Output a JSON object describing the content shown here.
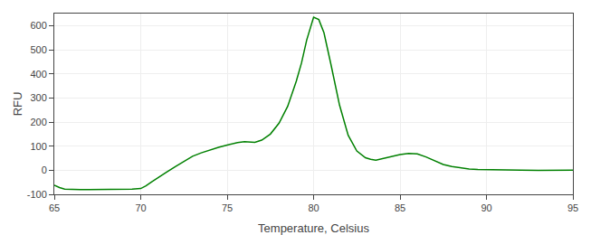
{
  "chart_data": {
    "type": "line",
    "xlabel": "Temperature, Celsius",
    "ylabel": "RFU",
    "x": [
      65.0,
      65.3,
      65.6,
      66.0,
      66.5,
      67.0,
      67.5,
      68.0,
      68.5,
      69.0,
      69.5,
      70.0,
      70.3,
      70.6,
      71.0,
      71.5,
      72.0,
      72.5,
      73.0,
      73.5,
      74.0,
      74.5,
      75.0,
      75.3,
      75.6,
      76.0,
      76.3,
      76.6,
      77.0,
      77.5,
      78.0,
      78.5,
      79.0,
      79.3,
      79.6,
      80.0,
      80.3,
      80.6,
      81.0,
      81.5,
      82.0,
      82.5,
      83.0,
      83.3,
      83.6,
      84.0,
      84.5,
      85.0,
      85.5,
      86.0,
      86.5,
      87.0,
      87.5,
      88.0,
      88.5,
      89.0,
      89.5,
      90.0,
      90.5,
      91.0,
      92.0,
      93.0,
      94.0,
      95.0
    ],
    "values": [
      -62,
      -72,
      -78,
      -80,
      -80,
      -80,
      -80,
      -80,
      -80,
      -80,
      -78,
      -76,
      -65,
      -50,
      -30,
      -8,
      15,
      38,
      58,
      72,
      85,
      95,
      104,
      110,
      115,
      118,
      118,
      116,
      125,
      150,
      195,
      265,
      370,
      445,
      540,
      635,
      625,
      570,
      440,
      270,
      145,
      80,
      52,
      45,
      42,
      48,
      58,
      65,
      70,
      68,
      55,
      38,
      24,
      15,
      9,
      5,
      3,
      2,
      1,
      0,
      0,
      -1,
      0,
      0
    ],
    "color": "#008000",
    "xlim": [
      65,
      95
    ],
    "ylim": [
      -100,
      650
    ],
    "xticks": [
      65,
      70,
      75,
      80,
      85,
      90,
      95
    ],
    "yticks": [
      -100,
      0,
      100,
      200,
      300,
      400,
      500,
      600
    ],
    "grid": true
  }
}
